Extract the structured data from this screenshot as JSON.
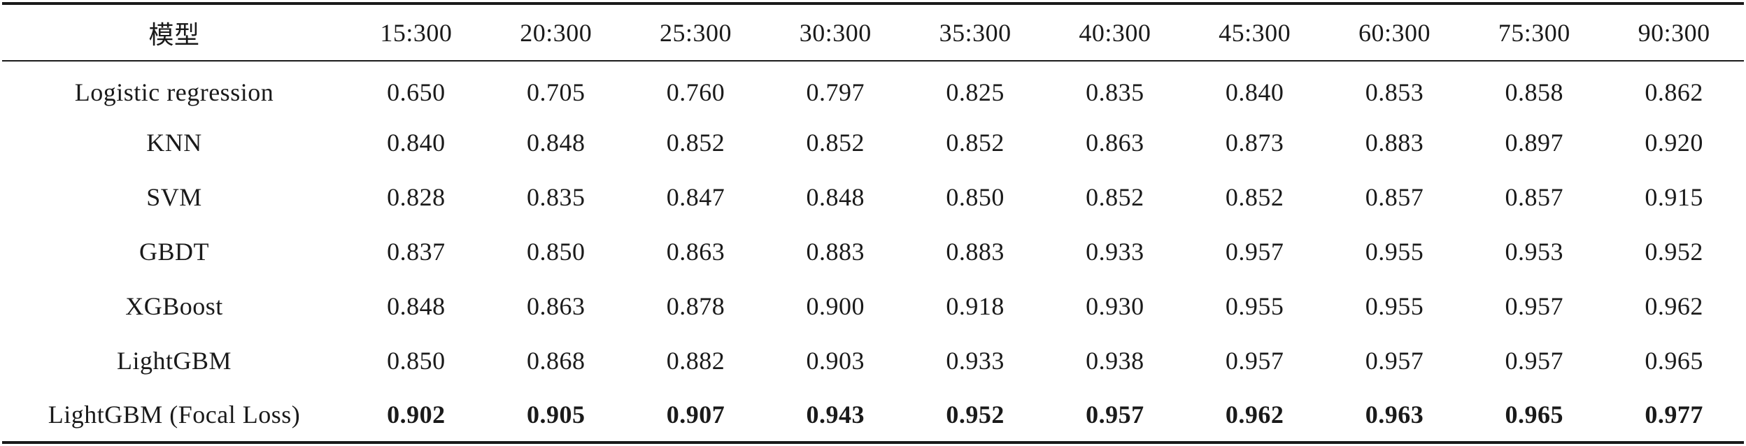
{
  "table": {
    "header": {
      "model": "模型",
      "ratios": [
        "15:300",
        "20:300",
        "25:300",
        "30:300",
        "35:300",
        "40:300",
        "45:300",
        "60:300",
        "75:300",
        "90:300"
      ]
    },
    "rows": [
      {
        "model": "Logistic regression",
        "values": [
          "0.650",
          "0.705",
          "0.760",
          "0.797",
          "0.825",
          "0.835",
          "0.840",
          "0.853",
          "0.858",
          "0.862"
        ],
        "bold": false
      },
      {
        "model": "KNN",
        "values": [
          "0.840",
          "0.848",
          "0.852",
          "0.852",
          "0.852",
          "0.863",
          "0.873",
          "0.883",
          "0.897",
          "0.920"
        ],
        "bold": false
      },
      {
        "model": "SVM",
        "values": [
          "0.828",
          "0.835",
          "0.847",
          "0.848",
          "0.850",
          "0.852",
          "0.852",
          "0.857",
          "0.857",
          "0.915"
        ],
        "bold": false
      },
      {
        "model": "GBDT",
        "values": [
          "0.837",
          "0.850",
          "0.863",
          "0.883",
          "0.883",
          "0.933",
          "0.957",
          "0.955",
          "0.953",
          "0.952"
        ],
        "bold": false
      },
      {
        "model": "XGBoost",
        "values": [
          "0.848",
          "0.863",
          "0.878",
          "0.900",
          "0.918",
          "0.930",
          "0.955",
          "0.955",
          "0.957",
          "0.962"
        ],
        "bold": false
      },
      {
        "model": "LightGBM",
        "values": [
          "0.850",
          "0.868",
          "0.882",
          "0.903",
          "0.933",
          "0.938",
          "0.957",
          "0.957",
          "0.957",
          "0.965"
        ],
        "bold": false
      },
      {
        "model": "LightGBM (Focal Loss)",
        "values": [
          "0.902",
          "0.905",
          "0.907",
          "0.943",
          "0.952",
          "0.957",
          "0.962",
          "0.963",
          "0.965",
          "0.977"
        ],
        "bold": true
      }
    ]
  }
}
